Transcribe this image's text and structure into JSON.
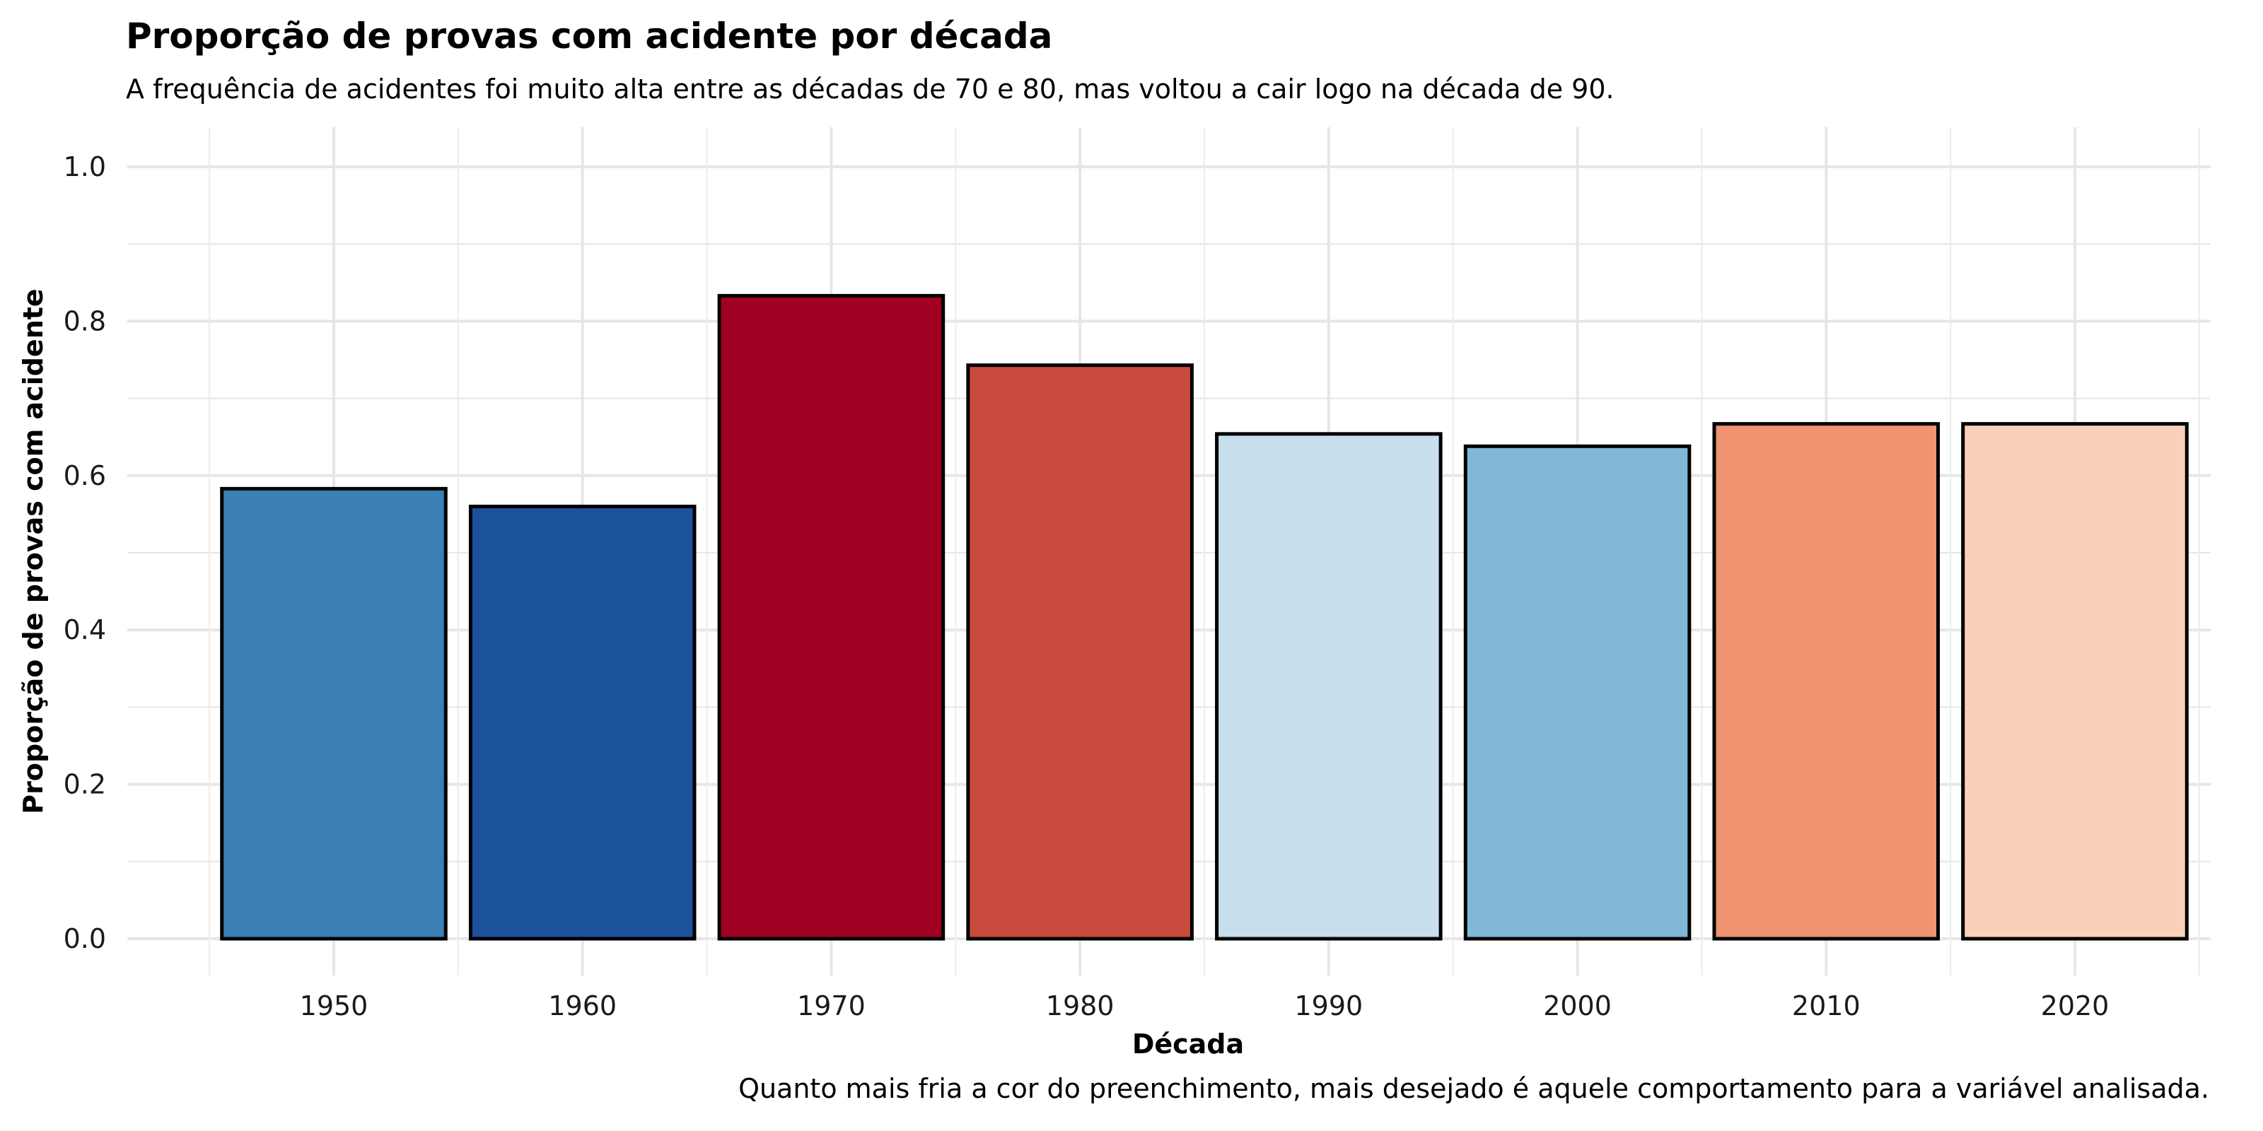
{
  "chart_data": {
    "type": "bar",
    "title": "Proporção de provas com acidente por década",
    "subtitle": "A frequência de acidentes foi muito alta entre as décadas de 70 e 80, mas voltou a cair logo na década de 90.",
    "caption": "Quanto mais fria a cor do preenchimento, mais desejado é aquele comportamento para a variável analisada.",
    "xlabel": "Década",
    "ylabel": "Proporção de provas com acidente",
    "categories": [
      "1950",
      "1960",
      "1970",
      "1980",
      "1990",
      "2000",
      "2010",
      "2020"
    ],
    "values": [
      0.583,
      0.56,
      0.833,
      0.743,
      0.654,
      0.638,
      0.667,
      0.667
    ],
    "colors": [
      "#3a80b5",
      "#1c519c",
      "#a00022",
      "#c94b3e",
      "#c7deec",
      "#82b8d7",
      "#ef9370",
      "#fbd0b9"
    ],
    "ylim": [
      0,
      1.0
    ],
    "yticks": [
      "0.0",
      "0.2",
      "0.4",
      "0.6",
      "0.8",
      "1.0"
    ],
    "grid": true,
    "legend": "none"
  }
}
